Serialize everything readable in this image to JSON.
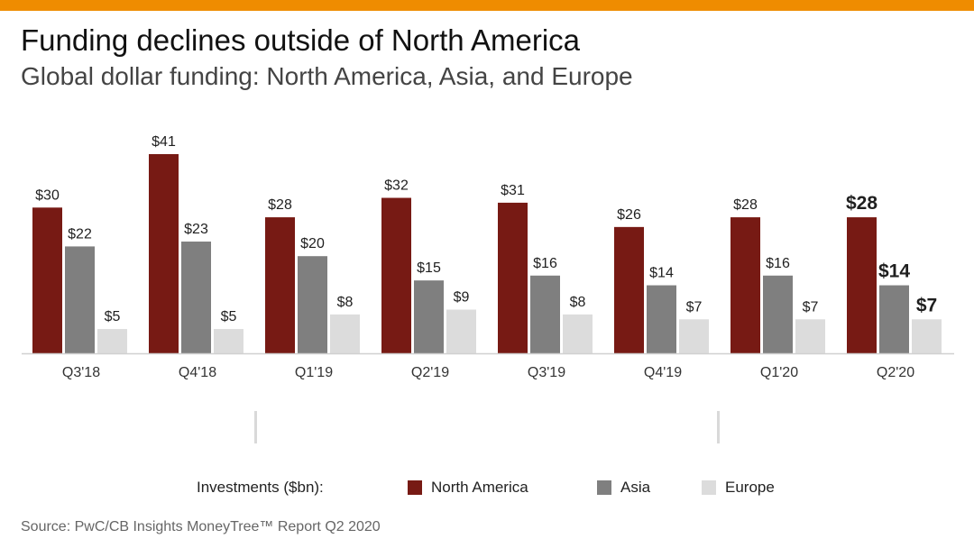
{
  "header": {
    "title": "Funding declines outside of North America",
    "subtitle": "Global dollar funding: North America, Asia, and Europe"
  },
  "colors": {
    "accent_bar": "#ef8c00",
    "north_america": "#771a14",
    "asia": "#7f7f7f",
    "europe": "#dcdcdc",
    "axis": "#d0d0d0"
  },
  "chart_data": {
    "type": "bar",
    "categories": [
      "Q3'18",
      "Q4'18",
      "Q1'19",
      "Q2'19",
      "Q3'19",
      "Q4'19",
      "Q1'20",
      "Q2'20"
    ],
    "series": [
      {
        "name": "North America",
        "values": [
          30,
          41,
          28,
          32,
          31,
          26,
          28,
          28
        ],
        "labels": [
          "$30",
          "$41",
          "$28",
          "$32",
          "$31",
          "$26",
          "$28",
          "$28"
        ]
      },
      {
        "name": "Asia",
        "values": [
          22,
          23,
          20,
          15,
          16,
          14,
          16,
          14
        ],
        "labels": [
          "$22",
          "$23",
          "$20",
          "$15",
          "$16",
          "$14",
          "$16",
          "$14"
        ]
      },
      {
        "name": "Europe",
        "values": [
          5,
          5,
          8,
          9,
          8,
          7,
          7,
          7
        ],
        "labels": [
          "$5",
          "$5",
          "$8",
          "$9",
          "$8",
          "$7",
          "$7",
          "$7"
        ]
      }
    ],
    "highlighted_category": "Q2'20",
    "ylim": [
      0,
      41
    ],
    "grid": false,
    "legend_title": "Investments ($bn):",
    "legend_position": "bottom"
  },
  "footer": {
    "source": "Source: PwC/CB Insights MoneyTree™ Report Q2 2020"
  }
}
